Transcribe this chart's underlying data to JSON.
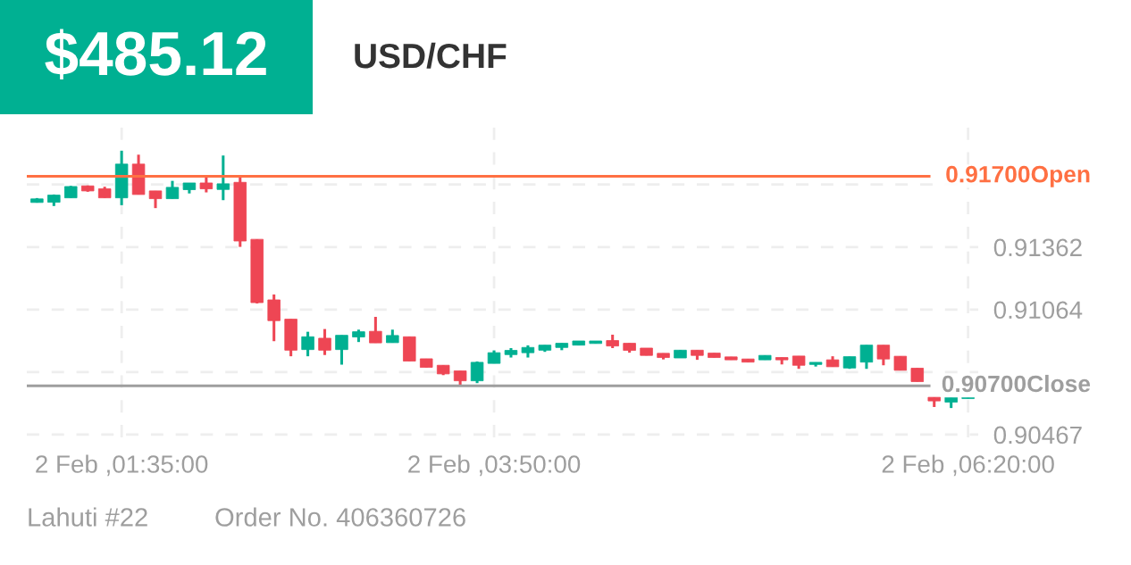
{
  "chart_data": {
    "type": "candlestick",
    "title": "USD/CHF",
    "subtitle": "$485.12",
    "annotations": [
      "Lahuti #22",
      "Order No. 406360726"
    ],
    "categories": [
      null,
      null,
      null,
      null,
      null,
      "2 Feb ,01:35:00",
      null,
      null,
      null,
      null,
      null,
      null,
      null,
      null,
      null,
      null,
      null,
      null,
      null,
      null,
      null,
      null,
      null,
      null,
      null,
      null,
      null,
      "2 Feb ,03:50:00",
      null,
      null,
      null,
      null,
      null,
      null,
      null,
      null,
      null,
      null,
      null,
      null,
      null,
      null,
      null,
      null,
      null,
      null,
      null,
      null,
      null,
      null,
      null,
      null,
      null,
      null,
      null,
      "2 Feb ,06:20:00"
    ],
    "ohlc": [
      [
        0.91575,
        0.91596,
        0.91574,
        0.91592
      ],
      [
        0.91576,
        0.91613,
        0.91558,
        0.9161
      ],
      [
        0.91597,
        0.91654,
        0.91597,
        0.91651
      ],
      [
        0.91654,
        0.91656,
        0.91626,
        0.9163
      ],
      [
        0.9164,
        0.9165,
        0.91597,
        0.91597
      ],
      [
        0.91597,
        0.91822,
        0.91562,
        0.91758
      ],
      [
        0.91758,
        0.91803,
        0.91613,
        0.91613
      ],
      [
        0.9163,
        0.9163,
        0.91548,
        0.91593
      ],
      [
        0.91593,
        0.91678,
        0.91593,
        0.91647
      ],
      [
        0.91636,
        0.91668,
        0.91618,
        0.91668
      ],
      [
        0.91668,
        0.91697,
        0.91623,
        0.9164
      ],
      [
        0.91637,
        0.91799,
        0.91586,
        0.91664
      ],
      [
        0.91671,
        0.91701,
        0.91363,
        0.91391
      ],
      [
        0.91399,
        0.91399,
        0.91093,
        0.91097
      ],
      [
        0.9111,
        0.91136,
        0.90913,
        0.91011
      ],
      [
        0.91018,
        0.91018,
        0.90841,
        0.9087
      ],
      [
        0.90873,
        0.90958,
        0.90841,
        0.90934
      ],
      [
        0.90927,
        0.90971,
        0.90847,
        0.9087
      ],
      [
        0.90873,
        0.90941,
        0.90801,
        0.90941
      ],
      [
        0.90933,
        0.90968,
        0.90909,
        0.90958
      ],
      [
        0.9096,
        0.91029,
        0.90905,
        0.90905
      ],
      [
        0.90906,
        0.90968,
        0.90906,
        0.9094
      ],
      [
        0.90934,
        0.90934,
        0.90818,
        0.90818
      ],
      [
        0.90829,
        0.90829,
        0.90788,
        0.90788
      ],
      [
        0.90798,
        0.90798,
        0.90751,
        0.90757
      ],
      [
        0.90771,
        0.90771,
        0.90704,
        0.90724
      ],
      [
        0.90724,
        0.90816,
        0.90713,
        0.90812
      ],
      [
        0.90807,
        0.90869,
        0.90807,
        0.90858
      ],
      [
        0.90849,
        0.9088,
        0.90835,
        0.90869
      ],
      [
        0.90858,
        0.90893,
        0.90835,
        0.90883
      ],
      [
        0.9087,
        0.90894,
        0.90862,
        0.90894
      ],
      [
        0.90883,
        0.90903,
        0.9087,
        0.90903
      ],
      [
        0.90894,
        0.90914,
        0.90894,
        0.90914
      ],
      [
        0.90902,
        0.90914,
        0.90902,
        0.90914
      ],
      [
        0.90916,
        0.90944,
        0.9088,
        0.9089
      ],
      [
        0.90903,
        0.90903,
        0.90858,
        0.90869
      ],
      [
        0.9088,
        0.9088,
        0.90845,
        0.90845
      ],
      [
        0.90855,
        0.90855,
        0.90826,
        0.90835
      ],
      [
        0.90833,
        0.9087,
        0.90833,
        0.9087
      ],
      [
        0.9087,
        0.9087,
        0.90824,
        0.90845
      ],
      [
        0.90856,
        0.90856,
        0.90835,
        0.90835
      ],
      [
        0.90838,
        0.90838,
        0.90824,
        0.90824
      ],
      [
        0.90828,
        0.90828,
        0.90813,
        0.90813
      ],
      [
        0.90824,
        0.90845,
        0.90824,
        0.90845
      ],
      [
        0.90835,
        0.90835,
        0.90802,
        0.90824
      ],
      [
        0.90842,
        0.90842,
        0.90781,
        0.90798
      ],
      [
        0.90802,
        0.90812,
        0.90792,
        0.90812
      ],
      [
        0.90824,
        0.90841,
        0.90791,
        0.90791
      ],
      [
        0.90785,
        0.90839,
        0.90781,
        0.90839
      ],
      [
        0.90813,
        0.90894,
        0.90781,
        0.90894
      ],
      [
        0.90894,
        0.90894,
        0.90798,
        0.90828
      ],
      [
        0.90841,
        0.90841,
        0.90774,
        0.90774
      ],
      [
        0.90784,
        0.90784,
        0.9072,
        0.9072
      ],
      [
        0.90645,
        0.90645,
        0.90599,
        0.90628
      ],
      [
        0.90622,
        0.90645,
        0.90594,
        0.90645
      ],
      [
        0.90639,
        0.90645,
        0.90639,
        0.90645
      ]
    ],
    "colors": [
      "#00b092",
      "#00b092",
      "#00b092",
      "#ee4654",
      "#ee4654",
      "#00b092",
      "#ee4654",
      "#ee4654",
      "#00b092",
      "#00b092",
      "#ee4654",
      "#00b092",
      "#ee4654",
      "#ee4654",
      "#ee4654",
      "#ee4654",
      "#00b092",
      "#ee4654",
      "#00b092",
      "#00b092",
      "#ee4654",
      "#00b092",
      "#ee4654",
      "#ee4654",
      "#ee4654",
      "#ee4654",
      "#00b092",
      "#00b092",
      "#00b092",
      "#00b092",
      "#00b092",
      "#00b092",
      "#00b092",
      "#00b092",
      "#ee4654",
      "#ee4654",
      "#ee4654",
      "#ee4654",
      "#00b092",
      "#ee4654",
      "#ee4654",
      "#ee4654",
      "#ee4654",
      "#00b092",
      "#ee4654",
      "#ee4654",
      "#00b092",
      "#ee4654",
      "#00b092",
      "#00b092",
      "#ee4654",
      "#ee4654",
      "#ee4654",
      "#ee4654",
      "#00b092",
      "#00b092"
    ],
    "ylim": [
      0.90454,
      0.91932
    ],
    "yticks": [
      0.90467,
      {
        "value": 0.90765,
        "label": null
      },
      0.91064,
      0.91362,
      {
        "value": 0.91661,
        "label": null
      }
    ],
    "ref_lines": [
      {
        "axis": "y",
        "value": 0.917,
        "label": "0.91700Open",
        "color": "#ff7043"
      },
      {
        "axis": "y",
        "value": 0.907,
        "label": "0.90700Close",
        "color": "#9e9e9e"
      }
    ],
    "grid": true
  }
}
